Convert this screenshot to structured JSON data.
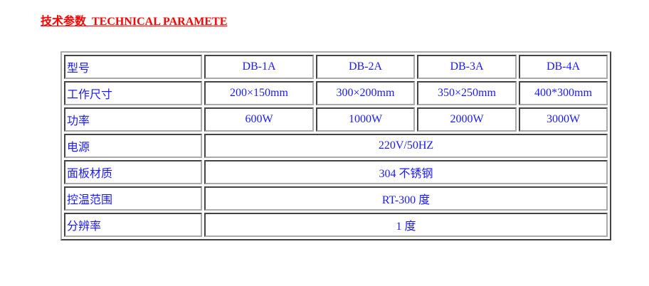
{
  "title": "技术参数  TECHNICAL PARAMETE",
  "models": [
    "DB-1A",
    "DB-2A",
    "DB-3A",
    "DB-4A"
  ],
  "rows": [
    {
      "label": "型号"
    },
    {
      "label": "工作尺寸",
      "values": [
        "200×150mm",
        "300×200mm",
        "350×250mm",
        "400*300mm"
      ]
    },
    {
      "label": "功率",
      "values": [
        "600W",
        "1000W",
        "2000W",
        "3000W"
      ]
    },
    {
      "label": "电源",
      "value": "220V/50HZ"
    },
    {
      "label": "面板材质",
      "value": "304 不锈钢"
    },
    {
      "label": "控温范围",
      "value": "RT-300 度"
    },
    {
      "label": "分辨率",
      "value": "1 度"
    }
  ],
  "colors": {
    "title": "#ff0000",
    "text": "#1a1aff"
  }
}
